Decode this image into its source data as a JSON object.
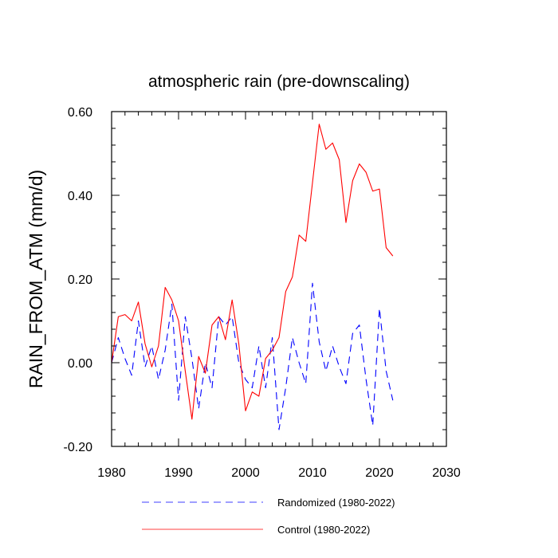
{
  "chart_data": {
    "type": "line",
    "title": "atmospheric rain (pre-downscaling)",
    "xlabel": "",
    "ylabel": "RAIN_FROM_ATM  (mm/d)",
    "xlim": [
      1980,
      2030
    ],
    "ylim": [
      -0.2,
      0.6
    ],
    "xticks": [
      1980,
      1990,
      2000,
      2010,
      2020,
      2030
    ],
    "xtick_labels": [
      "1980",
      "1990",
      "2000",
      "2010",
      "2020",
      "2030"
    ],
    "yticks": [
      -0.2,
      0.0,
      0.2,
      0.4,
      0.6
    ],
    "ytick_labels": [
      "-0.20",
      "0.00",
      "0.20",
      "0.40",
      "0.60"
    ],
    "grid": false,
    "legend_position": "bottom",
    "x": [
      1980,
      1981,
      1982,
      1983,
      1984,
      1985,
      1986,
      1987,
      1988,
      1989,
      1990,
      1991,
      1992,
      1993,
      1994,
      1995,
      1996,
      1997,
      1998,
      1999,
      2000,
      2001,
      2002,
      2003,
      2004,
      2005,
      2006,
      2007,
      2008,
      2009,
      2010,
      2011,
      2012,
      2013,
      2014,
      2015,
      2016,
      2017,
      2018,
      2019,
      2020,
      2021,
      2022
    ],
    "series": [
      {
        "name": "Randomized (1980-2022)",
        "color": "#0000ff",
        "style": "dashed",
        "values": [
          0.0,
          0.06,
          0.01,
          -0.03,
          0.1,
          -0.01,
          0.04,
          -0.04,
          0.03,
          0.14,
          -0.09,
          0.11,
          0.01,
          -0.11,
          0.0,
          -0.06,
          0.11,
          0.09,
          0.11,
          0.0,
          -0.04,
          -0.06,
          0.04,
          -0.06,
          0.06,
          -0.16,
          -0.06,
          0.06,
          0.0,
          -0.05,
          0.19,
          0.05,
          -0.02,
          0.04,
          -0.01,
          -0.05,
          0.07,
          0.09,
          -0.04,
          -0.15,
          0.13,
          -0.02,
          -0.09
        ]
      },
      {
        "name": "Control (1980-2022)",
        "color": "#ff0000",
        "style": "solid",
        "values": [
          0.0,
          0.11,
          0.115,
          0.1,
          0.145,
          0.045,
          -0.01,
          0.04,
          0.18,
          0.15,
          0.1,
          -0.02,
          -0.135,
          0.015,
          -0.025,
          0.09,
          0.11,
          0.055,
          0.15,
          0.045,
          -0.115,
          -0.07,
          -0.08,
          0.01,
          0.03,
          0.06,
          0.17,
          0.205,
          0.305,
          0.29,
          0.43,
          0.57,
          0.51,
          0.525,
          0.485,
          0.335,
          0.435,
          0.475,
          0.455,
          0.41,
          0.415,
          0.275,
          0.255
        ]
      }
    ]
  }
}
